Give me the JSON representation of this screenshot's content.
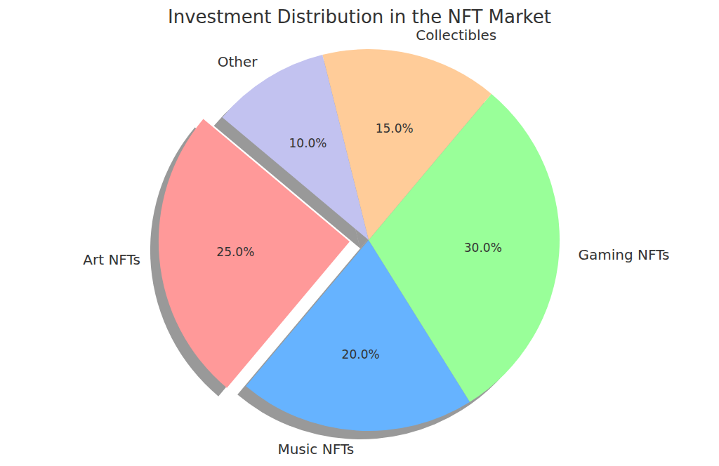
{
  "chart_data": {
    "type": "pie",
    "title": "Investment Distribution in the NFT Market",
    "categories": [
      "Art NFTs",
      "Music NFTs",
      "Gaming NFTs",
      "Collectibles",
      "Other"
    ],
    "values": [
      25,
      20,
      30,
      15,
      10
    ],
    "value_labels": [
      "25.0%",
      "20.0%",
      "30.0%",
      "15.0%",
      "10.0%"
    ],
    "colors": [
      "#ff9999",
      "#66b3ff",
      "#99ff99",
      "#ffcc99",
      "#c2c2f0"
    ],
    "data_labels": true
  }
}
